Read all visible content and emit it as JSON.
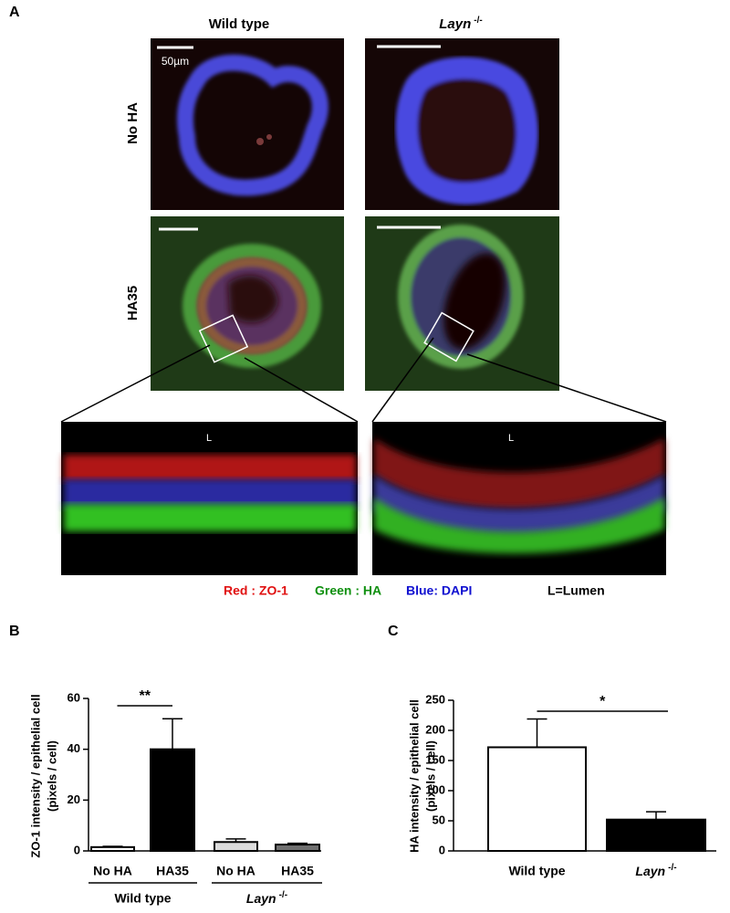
{
  "panel_a": {
    "panel_label": "A",
    "column_headers": [
      "Wild type",
      {
        "name": "Layn",
        "superscript": "-/-"
      }
    ],
    "row_labels": [
      "No HA",
      "HA35"
    ],
    "scale_bar": "50µm",
    "lumen_marks": [
      "L",
      "L"
    ],
    "legend": [
      "Red : ZO-1",
      "Green : HA",
      "Blue: DAPI"
    ],
    "lumen_note": "L=Lumen"
  },
  "chart_data": [
    {
      "type": "bar",
      "panel_label": "B",
      "ylabel": [
        "ZO-1 intensity / epithelial cell",
        "(pixels / cell)"
      ],
      "categories": [
        "No HA",
        "HA35",
        "No HA",
        "HA35"
      ],
      "groups": [
        "Wild type",
        {
          "name": "Layn",
          "superscript": "-/-"
        }
      ],
      "values": [
        1.5,
        40,
        3.5,
        2.5
      ],
      "errors": [
        0.3,
        12,
        1.2,
        0.5
      ],
      "colors": [
        "#ffffff",
        "#000000",
        "#dcdcdc",
        "#707070"
      ],
      "ylim": [
        0,
        60
      ],
      "yticks": [
        0,
        20,
        40,
        60
      ],
      "annotations": [
        "**"
      ]
    },
    {
      "type": "bar",
      "panel_label": "C",
      "ylabel": [
        "HA intensity / epithelial cell",
        "(pixels / cell)"
      ],
      "categories": [
        "Wild type",
        {
          "name": "Layn",
          "superscript": "-/-"
        }
      ],
      "values": [
        172,
        52
      ],
      "errors": [
        47,
        13
      ],
      "colors": [
        "#ffffff",
        "#000000"
      ],
      "ylim": [
        0,
        250
      ],
      "yticks": [
        0,
        50,
        100,
        150,
        200,
        250
      ],
      "annotations": [
        "*"
      ]
    }
  ]
}
